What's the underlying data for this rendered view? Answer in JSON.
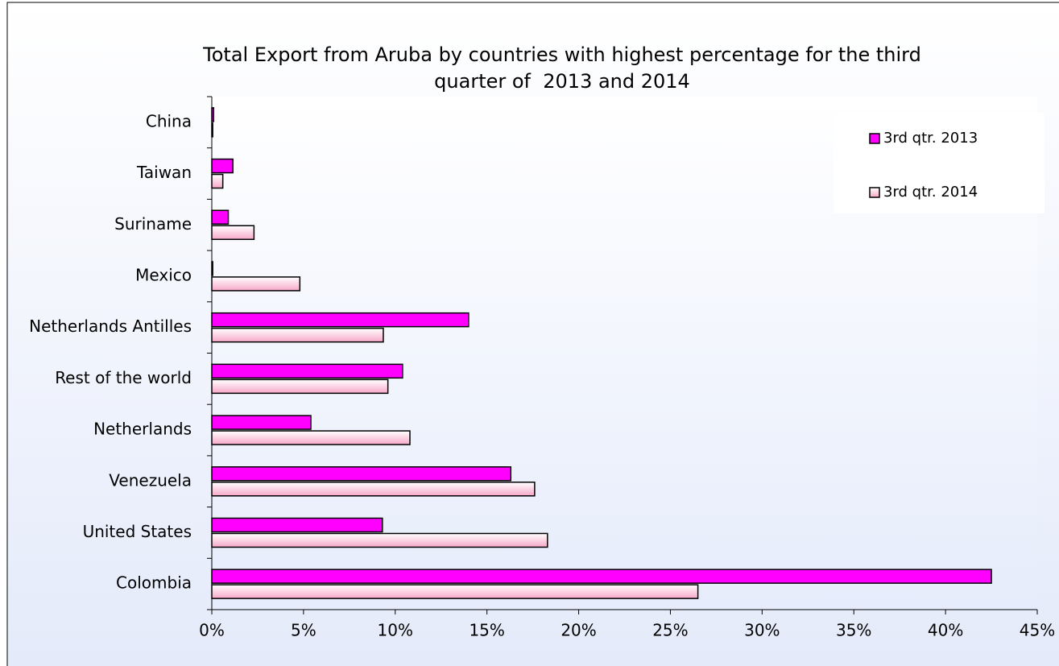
{
  "chart_data": {
    "type": "barh",
    "title": [
      "Total Export from Aruba by countries with highest percentage for the third",
      "quarter of  2013 and 2014"
    ],
    "categories": [
      "Colombia",
      "United States",
      "Venezuela",
      "Netherlands",
      "Rest of the world",
      "Netherlands Antilles",
      "Mexico",
      "Suriname",
      "Taiwan",
      "China"
    ],
    "series": [
      {
        "name": "3rd qtr. 2013",
        "color": "#ff00ff",
        "values": [
          42.5,
          9.3,
          16.3,
          5.4,
          10.4,
          14.0,
          0.05,
          0.9,
          1.15,
          0.1
        ]
      },
      {
        "name": "3rd qtr. 2014",
        "color": "#ffd6e6",
        "values": [
          26.5,
          18.3,
          17.6,
          10.8,
          9.6,
          9.35,
          4.8,
          2.3,
          0.6,
          0.05
        ]
      }
    ],
    "xlim": [
      0,
      45
    ],
    "xticks": [
      {
        "value": 0,
        "label": "0%"
      },
      {
        "value": 5,
        "label": "5%"
      },
      {
        "value": 10,
        "label": "10%"
      },
      {
        "value": 15,
        "label": "15%"
      },
      {
        "value": 20,
        "label": "20%"
      },
      {
        "value": 25,
        "label": "25%"
      },
      {
        "value": 30,
        "label": "30%"
      },
      {
        "value": 35,
        "label": "35%"
      },
      {
        "value": 40,
        "label": "40%"
      },
      {
        "value": 45,
        "label": "45%"
      }
    ],
    "legend": "upper right"
  }
}
